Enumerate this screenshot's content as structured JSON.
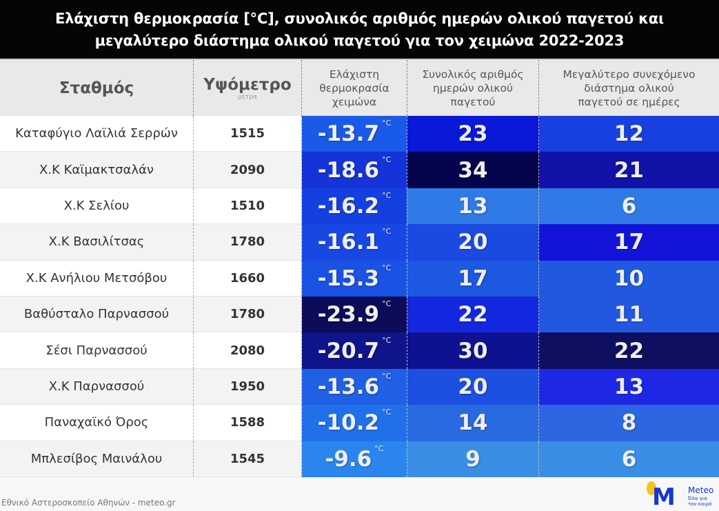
{
  "title": {
    "line1": "Ελάχιστη θερμοκρασία [°C], συνολικός αριθμός ημερών ολικού παγετού και",
    "line2": "μεγαλύτερο διάστημα ολικού παγετού για τον χειμώνα 2022-2023"
  },
  "headers": {
    "station": "Σταθμός",
    "altitude": "Υψόμετρο",
    "altitude_unit": "μέτρα",
    "temp": [
      "Ελάχιστη",
      "θερμοκρασία",
      "χειμώνα"
    ],
    "days": [
      "Συνολικός αριθμός",
      "ημερών ολικού",
      "παγετού"
    ],
    "longest": [
      "Μεγαλύτερο συνεχόμενο",
      "διάστημα ολικού",
      "παγετού σε ημέρες"
    ]
  },
  "degree_unit": "°C",
  "rows": [
    {
      "station": "Καταφύγιο Λαϊλιά Σερρών",
      "altitude": "1515",
      "temp": "-13.7",
      "days": "23",
      "longest": "12",
      "colors": [
        "#1a5ae8",
        "#0a18d8",
        "#1840e0"
      ]
    },
    {
      "station": "Χ.Κ Καϊμακτσαλάν",
      "altitude": "2090",
      "temp": "-18.6",
      "days": "34",
      "longest": "21",
      "colors": [
        "#1433d8",
        "#05054e",
        "#1212a8"
      ]
    },
    {
      "station": "Χ.Κ Σελίου",
      "altitude": "1510",
      "temp": "-16.2",
      "days": "13",
      "longest": "6",
      "colors": [
        "#1540e0",
        "#2f7ae6",
        "#2f7ae6"
      ]
    },
    {
      "station": "Χ.Κ Βασιλίτσας",
      "altitude": "1780",
      "temp": "-16.1",
      "days": "20",
      "longest": "17",
      "colors": [
        "#1848e4",
        "#1a4ae0",
        "#1414d8"
      ]
    },
    {
      "station": "Χ.Κ Ανήλιου Μετσόβου",
      "altitude": "1660",
      "temp": "-15.3",
      "days": "17",
      "longest": "10",
      "colors": [
        "#1a52e4",
        "#1c58e0",
        "#2058e0"
      ]
    },
    {
      "station": "Βαθύσταλο Παρνασσού",
      "altitude": "1780",
      "temp": "-23.9",
      "days": "22",
      "longest": "11",
      "colors": [
        "#0c0c58",
        "#1428e0",
        "#2258e0"
      ]
    },
    {
      "station": "Σέσι Παρνασσού",
      "altitude": "2080",
      "temp": "-20.7",
      "days": "30",
      "longest": "22",
      "colors": [
        "#10148a",
        "#0f1290",
        "#0f0f60"
      ]
    },
    {
      "station": "Χ.Κ Παρνασσού",
      "altitude": "1950",
      "temp": "-13.6",
      "days": "20",
      "longest": "13",
      "colors": [
        "#2060e4",
        "#1c50e0",
        "#1e28e4"
      ]
    },
    {
      "station": "Παναχαϊκό Όρος",
      "altitude": "1588",
      "temp": "-10.2",
      "days": "14",
      "longest": "8",
      "colors": [
        "#2070ea",
        "#2a6ae0",
        "#2c66e0"
      ]
    },
    {
      "station": "Μπλεσίβος Μαινάλου",
      "altitude": "1545",
      "temp": "-9.6",
      "days": "9",
      "longest": "6",
      "colors": [
        "#2a86ee",
        "#3a8ee6",
        "#3a8ee6"
      ]
    }
  ],
  "footer": "Εθνικό Αστεροσκοπείο Αθηνών - meteo.gr",
  "logo": {
    "mark": "M",
    "name": "Meteo",
    "tagline": "Όλα για τον καιρό"
  }
}
